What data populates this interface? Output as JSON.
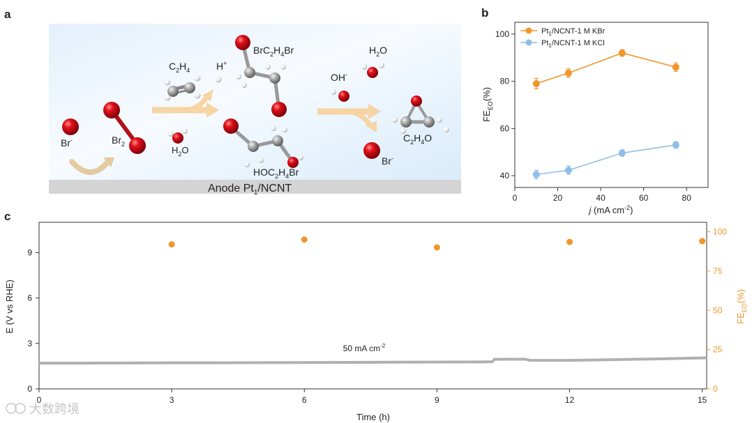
{
  "panels": {
    "a": "a",
    "b": "b",
    "c": "c"
  },
  "scheme": {
    "surface_label": "Anode Pt",
    "surface_sub": "1",
    "surface_tail": "/NCNT",
    "br_minus_base": "Br",
    "br_minus_sup": "-",
    "br2_base": "Br",
    "br2_sub": "2",
    "c2h4": {
      "p1": "C",
      "s1": "2",
      "p2": "H",
      "s2": "4"
    },
    "h_plus": {
      "base": "H",
      "sup": "+"
    },
    "h2o_a": {
      "p1": "H",
      "s1": "2",
      "p2": "O"
    },
    "h2o_b": {
      "p1": "H",
      "s1": "2",
      "p2": "O"
    },
    "brc2h4br": {
      "p1": "BrC",
      "s1": "2",
      "p2": "H",
      "s2": "4",
      "p3": "Br"
    },
    "hoc2h4br": {
      "p1": "HOC",
      "s1": "2",
      "p2": "H",
      "s2": "4",
      "p3": "Br"
    },
    "oh_minus": {
      "base": "OH",
      "sup": "-"
    },
    "c2h4o": {
      "p1": "C",
      "s1": "2",
      "p2": "H",
      "s2": "4",
      "p3": "O"
    },
    "br_out": {
      "base": "Br",
      "sup": "-"
    }
  },
  "chart_data": [
    {
      "panel": "b",
      "type": "line",
      "x": [
        10,
        25,
        50,
        75
      ],
      "series": [
        {
          "name": "Pt1/NCNT-1 M KBr",
          "legend_p1": "Pt",
          "legend_sub": "1",
          "legend_p2": "/NCNT-1 M KBr",
          "values": [
            79,
            83.5,
            92,
            86
          ],
          "errors": [
            2.2,
            1.8,
            1.4,
            1.8
          ],
          "color": "#f0962b"
        },
        {
          "name": "Pt1/NCNT-1 M KCl",
          "legend_p1": "Pt",
          "legend_sub": "1",
          "legend_p2": "/NCNT-1 M KCl",
          "values": [
            40.5,
            42.3,
            49.6,
            53
          ],
          "errors": [
            1.8,
            1.8,
            1.4,
            1.4
          ],
          "color": "#8fbfe8"
        }
      ],
      "xlim": [
        0,
        90
      ],
      "ylim": [
        35,
        105
      ],
      "xticks": [
        0,
        20,
        40,
        60,
        80
      ],
      "yticks": [
        40,
        60,
        80,
        100
      ],
      "xlabel_italic": "j",
      "xlabel_rest": " (mA cm",
      "xlabel_sup": "-2",
      "xlabel_end": ")",
      "ylabel_base": "FE",
      "ylabel_sub": "EO",
      "ylabel_end": "(%)",
      "legend_position": "top-left"
    },
    {
      "panel": "c",
      "type": "line",
      "xlabel": "Time (h)",
      "xlim": [
        0,
        15.1
      ],
      "xticks": [
        0,
        3,
        6,
        9,
        12,
        15
      ],
      "ylabel_left": "E (V vs RHE)",
      "ylim_left": [
        0,
        11
      ],
      "yticks_left": [
        0,
        3,
        6,
        9
      ],
      "ylabel_right_base": "FE",
      "ylabel_right_sub": "EO",
      "ylabel_right_end": "(%)",
      "ylim_right": [
        0,
        106
      ],
      "yticks_right": [
        0,
        25,
        50,
        75,
        100
      ],
      "annotation_base": "50 mA cm",
      "annotation_sup": "-2",
      "potential_series": {
        "name": "E",
        "color": "#b0b0b0",
        "x": [
          0,
          1,
          2,
          3,
          4,
          5,
          6,
          7,
          8,
          9,
          10,
          10.25,
          10.3,
          11,
          11.1,
          12,
          13,
          14,
          15.1
        ],
        "values": [
          1.7,
          1.7,
          1.71,
          1.72,
          1.72,
          1.73,
          1.74,
          1.75,
          1.76,
          1.77,
          1.78,
          1.79,
          1.95,
          1.96,
          1.88,
          1.88,
          1.93,
          1.98,
          2.05
        ]
      },
      "fe_series": {
        "name": "FE EO",
        "color": "#f0962b",
        "x": [
          3,
          6,
          9,
          12,
          15
        ],
        "values": [
          92,
          95,
          90,
          93.5,
          94
        ]
      }
    }
  ],
  "watermark": "大数跨境"
}
